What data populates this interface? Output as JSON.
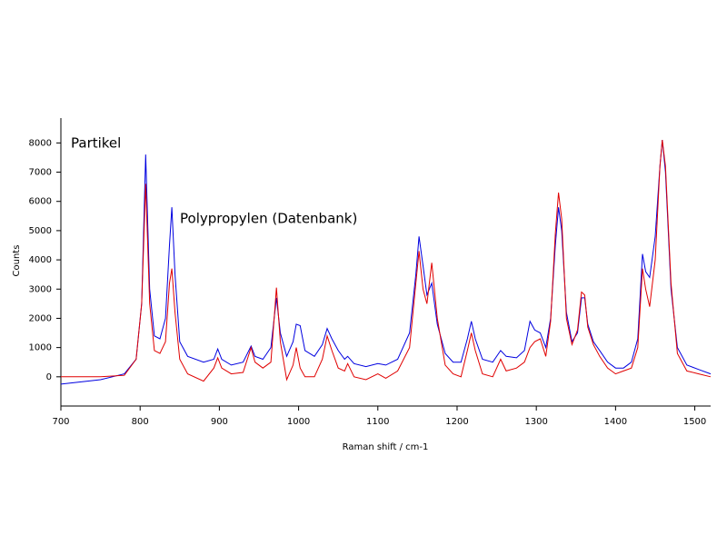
{
  "chart_data": {
    "type": "line",
    "x_label": "Raman shift / cm-1",
    "y_label": "Counts",
    "x": [
      700,
      750,
      780,
      795,
      802,
      807,
      812,
      818,
      825,
      832,
      837,
      840,
      844,
      850,
      860,
      880,
      893,
      898,
      903,
      915,
      930,
      940,
      945,
      955,
      965,
      972,
      977,
      985,
      993,
      997,
      1002,
      1008,
      1020,
      1030,
      1036,
      1042,
      1050,
      1058,
      1062,
      1070,
      1085,
      1100,
      1110,
      1125,
      1140,
      1148,
      1152,
      1157,
      1162,
      1168,
      1175,
      1185,
      1195,
      1205,
      1213,
      1218,
      1223,
      1232,
      1245,
      1255,
      1262,
      1275,
      1285,
      1292,
      1298,
      1305,
      1312,
      1318,
      1324,
      1328,
      1332,
      1338,
      1345,
      1352,
      1357,
      1361,
      1365,
      1372,
      1380,
      1390,
      1400,
      1410,
      1420,
      1428,
      1434,
      1438,
      1443,
      1450,
      1456,
      1459,
      1463,
      1470,
      1478,
      1490,
      1505,
      1520
    ],
    "series": [
      {
        "name": "Polypropylen (Datenbank)",
        "color": "#0000e0",
        "values": [
          -250,
          -100,
          100,
          600,
          2500,
          7600,
          3000,
          1400,
          1300,
          2000,
          4500,
          5800,
          3500,
          1200,
          700,
          500,
          600,
          950,
          600,
          400,
          500,
          1050,
          700,
          600,
          1000,
          2700,
          1500,
          700,
          1200,
          1800,
          1750,
          900,
          700,
          1100,
          1650,
          1300,
          900,
          600,
          700,
          450,
          350,
          450,
          400,
          600,
          1500,
          3500,
          4800,
          3800,
          2800,
          3200,
          1800,
          800,
          500,
          500,
          1300,
          1900,
          1300,
          600,
          500,
          900,
          700,
          650,
          900,
          1900,
          1600,
          1500,
          1000,
          2000,
          4500,
          5800,
          5000,
          2200,
          1200,
          1500,
          2700,
          2700,
          1800,
          1200,
          900,
          500,
          300,
          300,
          500,
          1300,
          4200,
          3600,
          3400,
          4800,
          7200,
          8100,
          7000,
          3000,
          1000,
          400,
          250,
          100
        ]
      },
      {
        "name": "Partikel",
        "color": "#e00000",
        "values": [
          0,
          0,
          50,
          600,
          2500,
          6600,
          2500,
          900,
          800,
          1200,
          3200,
          3700,
          2200,
          600,
          100,
          -150,
          300,
          650,
          300,
          100,
          150,
          1000,
          500,
          300,
          500,
          3050,
          1200,
          -100,
          400,
          1000,
          300,
          0,
          0,
          600,
          1400,
          900,
          300,
          200,
          450,
          0,
          -100,
          100,
          -50,
          200,
          1000,
          3200,
          4300,
          3000,
          2500,
          3900,
          2000,
          400,
          100,
          0,
          900,
          1500,
          900,
          100,
          0,
          600,
          200,
          300,
          500,
          1000,
          1200,
          1300,
          700,
          1900,
          4900,
          6300,
          5400,
          2000,
          1100,
          1600,
          2900,
          2800,
          1700,
          1100,
          700,
          300,
          100,
          200,
          300,
          1000,
          3700,
          3000,
          2400,
          4000,
          7200,
          8100,
          7200,
          3200,
          800,
          200,
          100,
          0
        ]
      }
    ],
    "xlim": [
      700,
      1520
    ],
    "ylim": [
      -1000,
      8850
    ],
    "xticks": [
      700,
      800,
      900,
      1000,
      1100,
      1200,
      1300,
      1400,
      1500
    ],
    "yticks": [
      0,
      1000,
      2000,
      3000,
      4000,
      5000,
      6000,
      7000,
      8000
    ]
  }
}
